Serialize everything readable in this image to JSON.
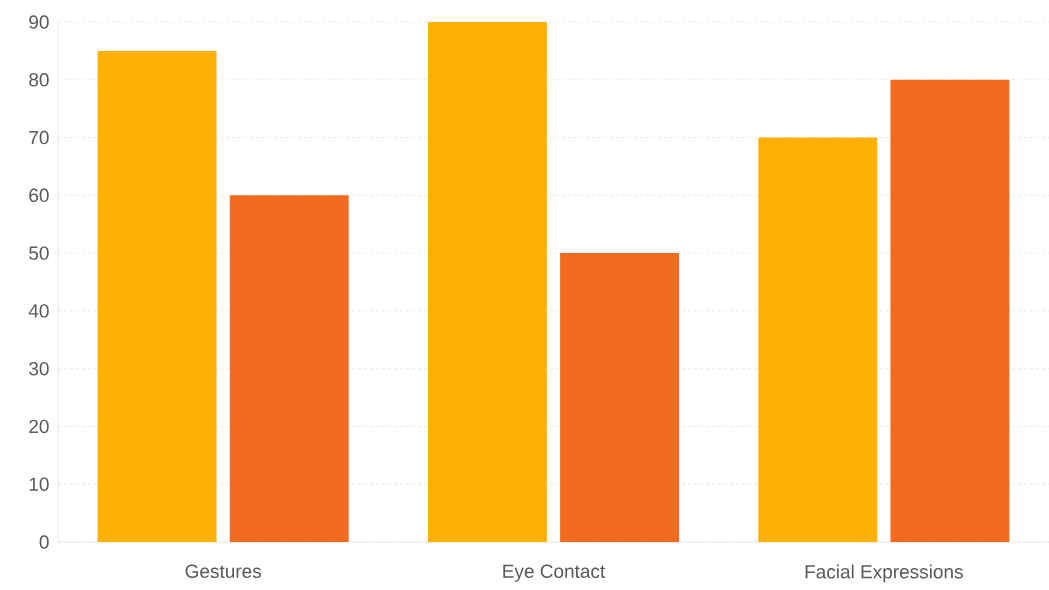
{
  "chart_data": {
    "type": "bar",
    "categories": [
      "Gestures",
      "Eye Contact",
      "Facial Expressions"
    ],
    "series": [
      {
        "color": "#ffb000",
        "values": [
          85,
          90,
          70
        ]
      },
      {
        "color": "#f26b21",
        "values": [
          60,
          50,
          80
        ]
      }
    ],
    "ylim": [
      0,
      90
    ],
    "yticks": [
      0,
      10,
      20,
      30,
      40,
      50,
      60,
      70,
      80,
      90
    ],
    "grid": "y"
  }
}
